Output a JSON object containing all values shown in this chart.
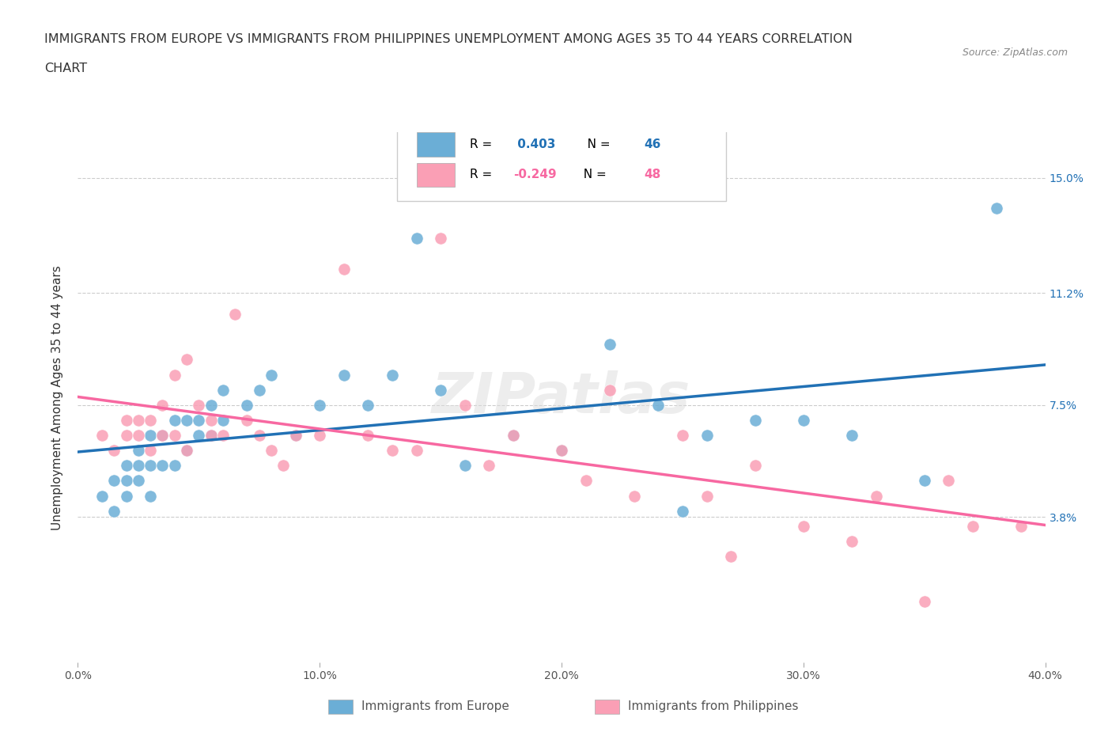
{
  "title_line1": "IMMIGRANTS FROM EUROPE VS IMMIGRANTS FROM PHILIPPINES UNEMPLOYMENT AMONG AGES 35 TO 44 YEARS CORRELATION",
  "title_line2": "CHART",
  "source": "Source: ZipAtlas.com",
  "ylabel": "Unemployment Among Ages 35 to 44 years",
  "xlim": [
    0.0,
    0.4
  ],
  "ylim": [
    -0.01,
    0.165
  ],
  "yticks": [
    0.038,
    0.075,
    0.112,
    0.15
  ],
  "ytick_labels": [
    "3.8%",
    "7.5%",
    "11.2%",
    "15.0%"
  ],
  "xticks": [
    0.0,
    0.1,
    0.2,
    0.3,
    0.4
  ],
  "xtick_labels": [
    "0.0%",
    "10.0%",
    "20.0%",
    "30.0%",
    "40.0%"
  ],
  "blue_color": "#6baed6",
  "pink_color": "#fa9fb5",
  "blue_line_color": "#2171b5",
  "pink_line_color": "#f768a1",
  "R_blue": 0.403,
  "N_blue": 46,
  "R_pink": -0.249,
  "N_pink": 48,
  "legend_label_blue": "Immigrants from Europe",
  "legend_label_pink": "Immigrants from Philippines",
  "watermark": "ZIPatlas",
  "background_color": "#ffffff",
  "grid_color": "#cccccc",
  "blue_scatter_x": [
    0.01,
    0.015,
    0.015,
    0.02,
    0.02,
    0.02,
    0.025,
    0.025,
    0.025,
    0.03,
    0.03,
    0.03,
    0.035,
    0.035,
    0.04,
    0.04,
    0.045,
    0.045,
    0.05,
    0.05,
    0.055,
    0.055,
    0.06,
    0.06,
    0.07,
    0.075,
    0.08,
    0.09,
    0.1,
    0.11,
    0.12,
    0.13,
    0.14,
    0.15,
    0.16,
    0.18,
    0.2,
    0.22,
    0.24,
    0.25,
    0.26,
    0.28,
    0.3,
    0.32,
    0.35,
    0.38
  ],
  "blue_scatter_y": [
    0.045,
    0.05,
    0.04,
    0.055,
    0.05,
    0.045,
    0.06,
    0.055,
    0.05,
    0.065,
    0.055,
    0.045,
    0.065,
    0.055,
    0.07,
    0.055,
    0.07,
    0.06,
    0.07,
    0.065,
    0.075,
    0.065,
    0.08,
    0.07,
    0.075,
    0.08,
    0.085,
    0.065,
    0.075,
    0.085,
    0.075,
    0.085,
    0.13,
    0.08,
    0.055,
    0.065,
    0.06,
    0.095,
    0.075,
    0.04,
    0.065,
    0.07,
    0.07,
    0.065,
    0.05,
    0.14
  ],
  "pink_scatter_x": [
    0.01,
    0.015,
    0.02,
    0.02,
    0.025,
    0.025,
    0.03,
    0.03,
    0.035,
    0.035,
    0.04,
    0.04,
    0.045,
    0.045,
    0.05,
    0.055,
    0.055,
    0.06,
    0.065,
    0.07,
    0.075,
    0.08,
    0.085,
    0.09,
    0.1,
    0.11,
    0.12,
    0.13,
    0.14,
    0.15,
    0.16,
    0.17,
    0.18,
    0.2,
    0.21,
    0.22,
    0.23,
    0.25,
    0.26,
    0.27,
    0.28,
    0.3,
    0.32,
    0.33,
    0.35,
    0.36,
    0.37,
    0.39
  ],
  "pink_scatter_y": [
    0.065,
    0.06,
    0.07,
    0.065,
    0.07,
    0.065,
    0.07,
    0.06,
    0.075,
    0.065,
    0.085,
    0.065,
    0.09,
    0.06,
    0.075,
    0.07,
    0.065,
    0.065,
    0.105,
    0.07,
    0.065,
    0.06,
    0.055,
    0.065,
    0.065,
    0.12,
    0.065,
    0.06,
    0.06,
    0.13,
    0.075,
    0.055,
    0.065,
    0.06,
    0.05,
    0.08,
    0.045,
    0.065,
    0.045,
    0.025,
    0.055,
    0.035,
    0.03,
    0.045,
    0.01,
    0.05,
    0.035,
    0.035
  ]
}
